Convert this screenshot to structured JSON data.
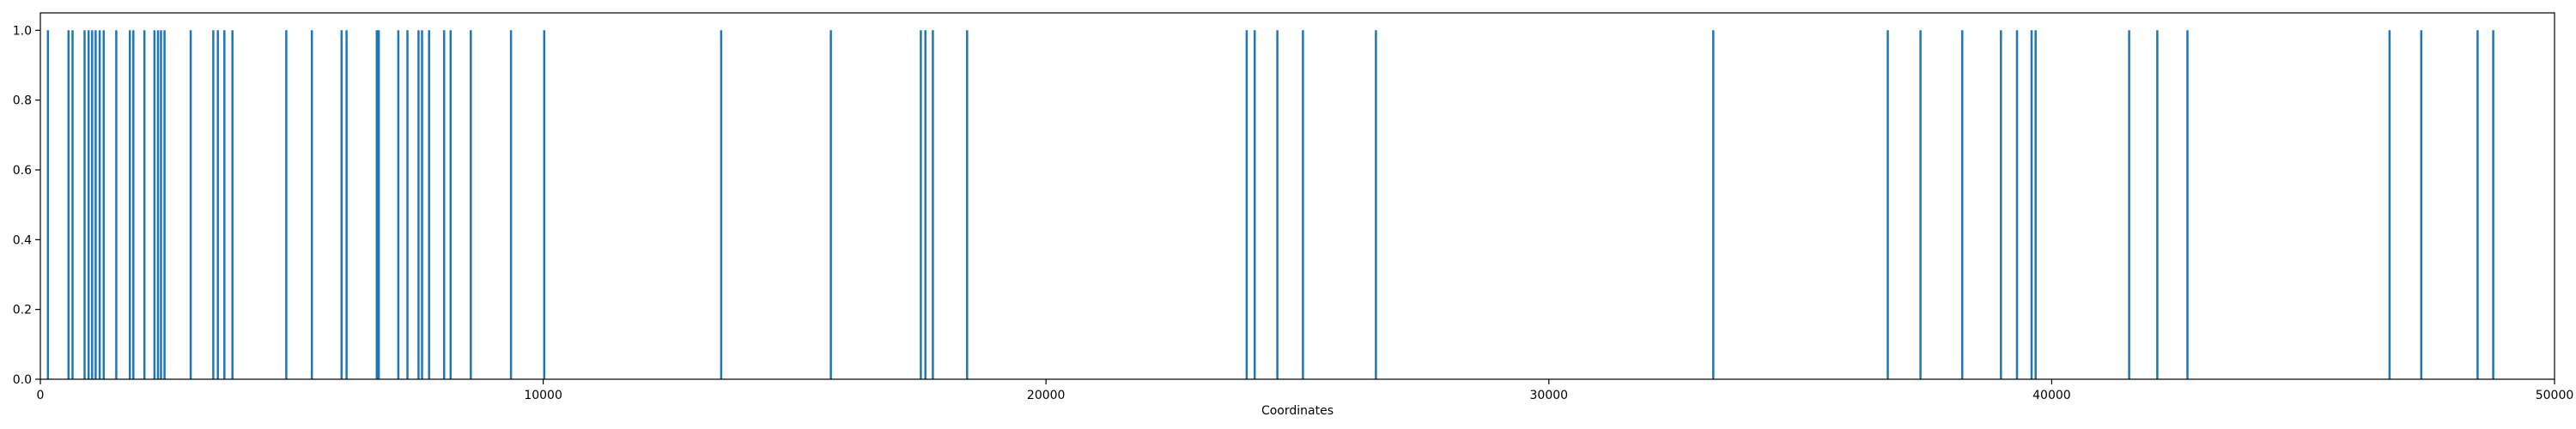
{
  "chart_data": {
    "type": "bar",
    "title": "",
    "xlabel": "Coordinates",
    "ylabel": "",
    "xlim": [
      0,
      50000
    ],
    "ylim": [
      0,
      1.05
    ],
    "x_ticks": [
      0,
      10000,
      20000,
      30000,
      40000,
      50000
    ],
    "y_ticks": [
      "0.0",
      "0.2",
      "0.4",
      "0.6",
      "0.8",
      "1.0"
    ],
    "grid": false,
    "legend": false,
    "bar_color": "#1f77b4",
    "series": [
      {
        "values": [
          [
            150,
            1
          ],
          [
            560,
            1
          ],
          [
            640,
            1
          ],
          [
            880,
            1
          ],
          [
            960,
            1
          ],
          [
            1030,
            1
          ],
          [
            1100,
            1
          ],
          [
            1180,
            1
          ],
          [
            1260,
            1
          ],
          [
            1510,
            1
          ],
          [
            1780,
            1
          ],
          [
            1850,
            1
          ],
          [
            2070,
            1
          ],
          [
            2270,
            1
          ],
          [
            2340,
            1
          ],
          [
            2400,
            1
          ],
          [
            2470,
            1
          ],
          [
            2990,
            1
          ],
          [
            3440,
            1
          ],
          [
            3530,
            1
          ],
          [
            3660,
            1
          ],
          [
            3820,
            1
          ],
          [
            4890,
            1
          ],
          [
            5400,
            1
          ],
          [
            5990,
            1
          ],
          [
            6090,
            1
          ],
          [
            6690,
            1
          ],
          [
            6730,
            1
          ],
          [
            7120,
            1
          ],
          [
            7300,
            1
          ],
          [
            7520,
            1
          ],
          [
            7590,
            1
          ],
          [
            7730,
            1
          ],
          [
            8030,
            1
          ],
          [
            8160,
            1
          ],
          [
            8560,
            1
          ],
          [
            9360,
            1
          ],
          [
            10020,
            1
          ],
          [
            13540,
            1
          ],
          [
            15720,
            1
          ],
          [
            17510,
            1
          ],
          [
            17600,
            1
          ],
          [
            17750,
            1
          ],
          [
            18430,
            1
          ],
          [
            23990,
            1
          ],
          [
            24150,
            1
          ],
          [
            24600,
            1
          ],
          [
            25110,
            1
          ],
          [
            26560,
            1
          ],
          [
            33270,
            1
          ],
          [
            36740,
            1
          ],
          [
            37390,
            1
          ],
          [
            38220,
            1
          ],
          [
            38990,
            1
          ],
          [
            39310,
            1
          ],
          [
            39600,
            1
          ],
          [
            39680,
            1
          ],
          [
            41540,
            1
          ],
          [
            42100,
            1
          ],
          [
            42700,
            1
          ],
          [
            46720,
            1
          ],
          [
            47350,
            1
          ],
          [
            48470,
            1
          ],
          [
            48780,
            1
          ]
        ]
      }
    ]
  }
}
